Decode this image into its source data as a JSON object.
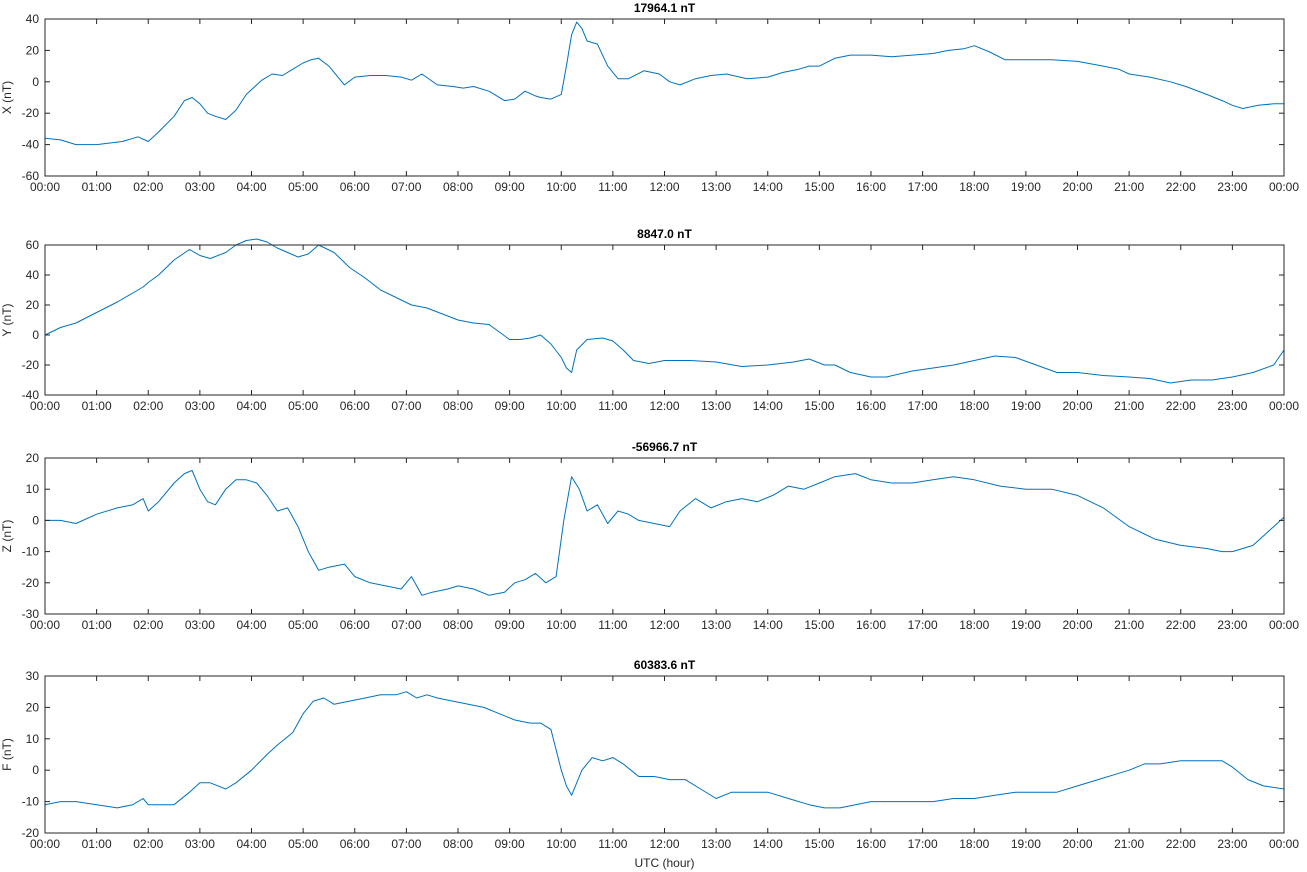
{
  "chart_data": [
    {
      "type": "line",
      "title": "17964.1 nT",
      "xlabel": "",
      "ylabel": "X (nT)",
      "xlim": [
        0,
        24
      ],
      "ylim": [
        -60,
        40
      ],
      "yticks": [
        -60,
        -40,
        -20,
        0,
        20,
        40
      ],
      "xtick_labels": [
        "00:00",
        "01:00",
        "02:00",
        "03:00",
        "04:00",
        "05:00",
        "06:00",
        "07:00",
        "08:00",
        "09:00",
        "10:00",
        "11:00",
        "12:00",
        "13:00",
        "14:00",
        "15:00",
        "16:00",
        "17:00",
        "18:00",
        "19:00",
        "20:00",
        "21:00",
        "22:00",
        "23:00",
        "00:00"
      ],
      "line_color": "#0072BD",
      "grid": false,
      "series": [
        {
          "x": [
            0,
            0.3,
            0.6,
            1,
            1.5,
            1.8,
            2,
            2.2,
            2.5,
            2.7,
            2.85,
            3,
            3.15,
            3.3,
            3.5,
            3.7,
            3.9,
            4,
            4.2,
            4.4,
            4.6,
            4.8,
            5,
            5.15,
            5.3,
            5.5,
            5.8,
            6,
            6.3,
            6.6,
            6.9,
            7.1,
            7.3,
            7.6,
            7.9,
            8.1,
            8.3,
            8.6,
            8.9,
            9.1,
            9.3,
            9.5,
            9.6,
            9.8,
            10,
            10.1,
            10.2,
            10.3,
            10.4,
            10.5,
            10.7,
            10.9,
            11.1,
            11.3,
            11.6,
            11.9,
            12.1,
            12.3,
            12.6,
            12.9,
            13.2,
            13.6,
            14,
            14.3,
            14.6,
            14.8,
            15,
            15.3,
            15.6,
            16,
            16.4,
            16.8,
            17.2,
            17.5,
            17.8,
            18,
            18.3,
            18.6,
            19,
            19.5,
            20,
            20.5,
            20.8,
            21,
            21.4,
            21.8,
            22.1,
            22.5,
            22.8,
            23,
            23.2,
            23.5,
            23.8,
            24
          ],
          "y": [
            -36,
            -37,
            -40,
            -40,
            -38,
            -35,
            -38,
            -32,
            -22,
            -12,
            -10,
            -14,
            -20,
            -22,
            -24,
            -18,
            -8,
            -5,
            1,
            5,
            4,
            8,
            12,
            14,
            15,
            10,
            -2,
            3,
            4,
            4,
            3,
            1,
            5,
            -2,
            -3,
            -4,
            -3,
            -6,
            -12,
            -11,
            -6,
            -9,
            -10,
            -11,
            -8,
            10,
            30,
            38,
            34,
            26,
            24,
            10,
            2,
            2,
            7,
            5,
            0,
            -2,
            2,
            4,
            5,
            2,
            3,
            6,
            8,
            10,
            10,
            15,
            17,
            17,
            16,
            17,
            18,
            20,
            21,
            23,
            19,
            14,
            14,
            14,
            13,
            10,
            8,
            5,
            3,
            0,
            -3,
            -8,
            -12,
            -15,
            -17,
            -15,
            -14,
            -14
          ]
        }
      ]
    },
    {
      "type": "line",
      "title": "8847.0 nT",
      "xlabel": "",
      "ylabel": "Y (nT)",
      "xlim": [
        0,
        24
      ],
      "ylim": [
        -40,
        60
      ],
      "yticks": [
        -40,
        -20,
        0,
        20,
        40,
        60
      ],
      "xtick_labels": [
        "00:00",
        "01:00",
        "02:00",
        "03:00",
        "04:00",
        "05:00",
        "06:00",
        "07:00",
        "08:00",
        "09:00",
        "10:00",
        "11:00",
        "12:00",
        "13:00",
        "14:00",
        "15:00",
        "16:00",
        "17:00",
        "18:00",
        "19:00",
        "20:00",
        "21:00",
        "22:00",
        "23:00",
        "00:00"
      ],
      "line_color": "#0072BD",
      "grid": false,
      "series": [
        {
          "x": [
            0,
            0.3,
            0.6,
            1,
            1.4,
            1.7,
            1.9,
            2,
            2.2,
            2.5,
            2.8,
            3,
            3.2,
            3.5,
            3.7,
            3.9,
            4.1,
            4.3,
            4.5,
            4.7,
            4.9,
            5.1,
            5.3,
            5.6,
            5.9,
            6.2,
            6.5,
            6.8,
            7.1,
            7.4,
            7.7,
            8,
            8.3,
            8.6,
            8.8,
            9,
            9.2,
            9.4,
            9.6,
            9.8,
            10,
            10.1,
            10.2,
            10.3,
            10.5,
            10.8,
            11,
            11.2,
            11.4,
            11.7,
            12,
            12.5,
            13,
            13.5,
            14,
            14.5,
            14.8,
            15.1,
            15.3,
            15.6,
            16,
            16.3,
            16.8,
            17.2,
            17.6,
            18,
            18.4,
            18.8,
            19.2,
            19.6,
            20,
            20.5,
            21,
            21.4,
            21.8,
            22.2,
            22.6,
            23,
            23.4,
            23.8,
            24
          ],
          "y": [
            0,
            5,
            8,
            15,
            22,
            28,
            32,
            35,
            40,
            50,
            57,
            53,
            51,
            55,
            60,
            63,
            64,
            62,
            58,
            55,
            52,
            54,
            60,
            55,
            45,
            38,
            30,
            25,
            20,
            18,
            14,
            10,
            8,
            7,
            2,
            -3,
            -3,
            -2,
            0,
            -6,
            -15,
            -22,
            -25,
            -10,
            -3,
            -2,
            -4,
            -10,
            -17,
            -19,
            -17,
            -17,
            -18,
            -21,
            -20,
            -18,
            -16,
            -20,
            -20,
            -25,
            -28,
            -28,
            -24,
            -22,
            -20,
            -17,
            -14,
            -15,
            -20,
            -25,
            -25,
            -27,
            -28,
            -29,
            -32,
            -30,
            -30,
            -28,
            -25,
            -20,
            -10
          ]
        }
      ]
    },
    {
      "type": "line",
      "title": "-56966.7 nT",
      "xlabel": "",
      "ylabel": "Z (nT)",
      "xlim": [
        0,
        24
      ],
      "ylim": [
        -30,
        20
      ],
      "yticks": [
        -30,
        -20,
        -10,
        0,
        10,
        20
      ],
      "xtick_labels": [
        "00:00",
        "01:00",
        "02:00",
        "03:00",
        "04:00",
        "05:00",
        "06:00",
        "07:00",
        "08:00",
        "09:00",
        "10:00",
        "11:00",
        "12:00",
        "13:00",
        "14:00",
        "15:00",
        "16:00",
        "17:00",
        "18:00",
        "19:00",
        "20:00",
        "21:00",
        "22:00",
        "23:00",
        "00:00"
      ],
      "line_color": "#0072BD",
      "grid": false,
      "series": [
        {
          "x": [
            0,
            0.3,
            0.6,
            1,
            1.4,
            1.7,
            1.8,
            1.9,
            2,
            2.2,
            2.5,
            2.7,
            2.85,
            3,
            3.15,
            3.3,
            3.5,
            3.7,
            3.9,
            4.1,
            4.3,
            4.5,
            4.7,
            4.9,
            5.1,
            5.3,
            5.5,
            5.8,
            6,
            6.3,
            6.6,
            6.9,
            7.1,
            7.3,
            7.5,
            7.8,
            8,
            8.3,
            8.6,
            8.9,
            9.1,
            9.3,
            9.5,
            9.7,
            9.9,
            10.05,
            10.2,
            10.35,
            10.5,
            10.7,
            10.9,
            11.1,
            11.3,
            11.5,
            11.8,
            12.1,
            12.3,
            12.6,
            12.9,
            13.2,
            13.5,
            13.8,
            14.1,
            14.4,
            14.7,
            15,
            15.3,
            15.7,
            16,
            16.4,
            16.8,
            17.2,
            17.6,
            18,
            18.5,
            19,
            19.5,
            20,
            20.5,
            21,
            21.5,
            22,
            22.5,
            22.8,
            23,
            23.4,
            23.8,
            24
          ],
          "y": [
            0,
            0,
            -1,
            2,
            4,
            5,
            6,
            7,
            3,
            6,
            12,
            15,
            16,
            10,
            6,
            5,
            10,
            13,
            13,
            12,
            8,
            3,
            4,
            -2,
            -10,
            -16,
            -15,
            -14,
            -18,
            -20,
            -21,
            -22,
            -18,
            -24,
            -23,
            -22,
            -21,
            -22,
            -24,
            -23,
            -20,
            -19,
            -17,
            -20,
            -18,
            0,
            14,
            10,
            3,
            5,
            -1,
            3,
            2,
            0,
            -1,
            -2,
            3,
            7,
            4,
            6,
            7,
            6,
            8,
            11,
            10,
            12,
            14,
            15,
            13,
            12,
            12,
            13,
            14,
            13,
            11,
            10,
            10,
            8,
            4,
            -2,
            -6,
            -8,
            -9,
            -10,
            -10,
            -8,
            -2,
            1
          ]
        }
      ]
    },
    {
      "type": "line",
      "title": "60383.6 nT",
      "xlabel": "UTC (hour)",
      "ylabel": "F (nT)",
      "xlim": [
        0,
        24
      ],
      "ylim": [
        -20,
        30
      ],
      "yticks": [
        -20,
        -10,
        0,
        10,
        20,
        30
      ],
      "xtick_labels": [
        "00:00",
        "01:00",
        "02:00",
        "03:00",
        "04:00",
        "05:00",
        "06:00",
        "07:00",
        "08:00",
        "09:00",
        "10:00",
        "11:00",
        "12:00",
        "13:00",
        "14:00",
        "15:00",
        "16:00",
        "17:00",
        "18:00",
        "19:00",
        "20:00",
        "21:00",
        "22:00",
        "23:00",
        "00:00"
      ],
      "line_color": "#0072BD",
      "grid": false,
      "series": [
        {
          "x": [
            0,
            0.3,
            0.6,
            1,
            1.4,
            1.7,
            1.9,
            2,
            2.2,
            2.5,
            2.8,
            3,
            3.2,
            3.5,
            3.7,
            4,
            4.3,
            4.5,
            4.8,
            5,
            5.2,
            5.4,
            5.6,
            5.9,
            6.2,
            6.5,
            6.8,
            7,
            7.2,
            7.4,
            7.6,
            7.9,
            8.2,
            8.5,
            8.8,
            9.1,
            9.4,
            9.6,
            9.8,
            10,
            10.1,
            10.2,
            10.4,
            10.6,
            10.8,
            11,
            11.2,
            11.5,
            11.8,
            12.1,
            12.4,
            12.7,
            13,
            13.3,
            13.6,
            14,
            14.4,
            14.8,
            15.1,
            15.4,
            15.7,
            16,
            16.4,
            16.8,
            17.2,
            17.6,
            18,
            18.4,
            18.8,
            19.2,
            19.6,
            20,
            20.4,
            20.8,
            21,
            21.3,
            21.6,
            22,
            22.4,
            22.8,
            23,
            23.3,
            23.6,
            24
          ],
          "y": [
            -11,
            -10,
            -10,
            -11,
            -12,
            -11,
            -9,
            -11,
            -11,
            -11,
            -7,
            -4,
            -4,
            -6,
            -4,
            0,
            5,
            8,
            12,
            18,
            22,
            23,
            21,
            22,
            23,
            24,
            24,
            25,
            23,
            24,
            23,
            22,
            21,
            20,
            18,
            16,
            15,
            15,
            13,
            0,
            -5,
            -8,
            0,
            4,
            3,
            4,
            2,
            -2,
            -2,
            -3,
            -3,
            -6,
            -9,
            -7,
            -7,
            -7,
            -9,
            -11,
            -12,
            -12,
            -11,
            -10,
            -10,
            -10,
            -10,
            -9,
            -9,
            -8,
            -7,
            -7,
            -7,
            -5,
            -3,
            -1,
            0,
            2,
            2,
            3,
            3,
            3,
            1,
            -3,
            -5,
            -6
          ]
        }
      ]
    }
  ]
}
